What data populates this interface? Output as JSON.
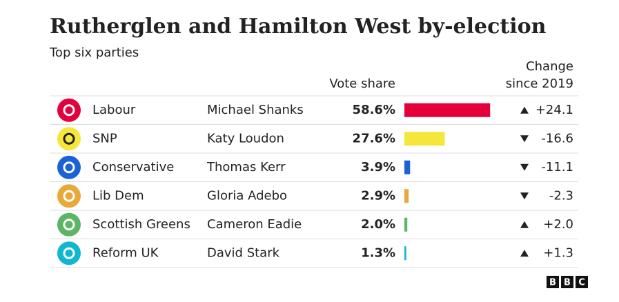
{
  "chart_data": {
    "type": "table-bar",
    "title": "Rutherglen and Hamilton West by-election",
    "subtitle": "Top six parties",
    "value_header": "Vote share",
    "change_header": [
      "Change",
      "since 2019"
    ],
    "categories": [
      "Labour",
      "SNP",
      "Conservative",
      "Lib Dem",
      "Scottish Greens",
      "Reform UK"
    ],
    "candidates": [
      "Michael Shanks",
      "Katy Loudon",
      "Thomas Kerr",
      "Gloria Adebo",
      "Cameron Eadie",
      "David Stark"
    ],
    "colors": [
      "#e4003b",
      "#f5e63b",
      "#1a62d6",
      "#e8a93a",
      "#5cb565",
      "#12b6cf"
    ],
    "values": [
      58.6,
      27.6,
      3.9,
      2.9,
      2.0,
      1.3
    ],
    "value_labels": [
      "58.6%",
      "27.6%",
      "3.9%",
      "2.9%",
      "2.0%",
      "1.3%"
    ],
    "change": {
      "values": [
        24.1,
        -16.6,
        -11.1,
        -2.3,
        2.0,
        1.3
      ],
      "value_labels": [
        "+24.1",
        "-16.6",
        "-11.1",
        "-2.3",
        "+2.0",
        "+1.3"
      ]
    },
    "logo": [
      "B",
      "B",
      "C"
    ]
  }
}
